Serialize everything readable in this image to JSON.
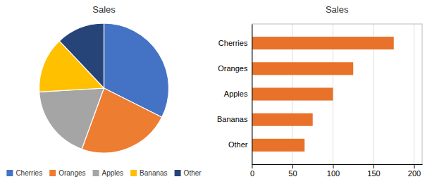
{
  "chart_data": [
    {
      "type": "pie",
      "title": "Sales",
      "categories": [
        "Cherries",
        "Oranges",
        "Apples",
        "Bananas",
        "Other"
      ],
      "values": [
        175,
        125,
        100,
        75,
        65
      ],
      "colors": [
        "#4472C4",
        "#ED7D31",
        "#A5A5A5",
        "#FFC000",
        "#264478"
      ],
      "legend": "bottom"
    },
    {
      "type": "bar",
      "title": "Sales",
      "orientation": "horizontal",
      "categories": [
        "Cherries",
        "Oranges",
        "Apples",
        "Bananas",
        "Other"
      ],
      "values": [
        175,
        125,
        100,
        75,
        65
      ],
      "color": "#E87229",
      "xlim": [
        0,
        210
      ],
      "xticks": [
        0,
        50,
        100,
        150,
        200
      ],
      "grid": true
    }
  ]
}
